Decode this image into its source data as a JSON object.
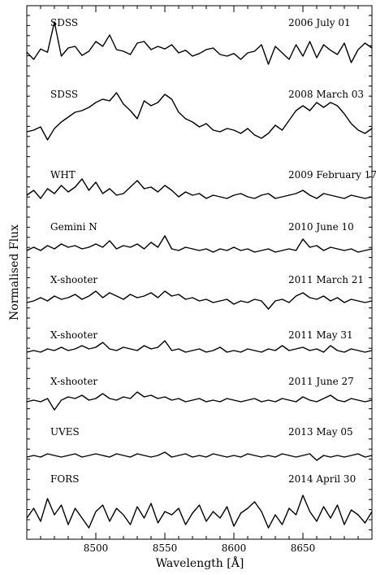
{
  "chart_data": {
    "type": "line",
    "xlabel": "Wavelength [Å]",
    "ylabel": "Normalised Flux",
    "xlim": [
      8450,
      8700
    ],
    "xticks": [
      8500,
      8550,
      8600,
      8650
    ],
    "xtick_labels": [
      "8500",
      "8550",
      "8600",
      "8650"
    ],
    "grid": false,
    "series": [
      {
        "name": "SDSS",
        "date": "2006  July 01",
        "x": [
          8450,
          8455,
          8460,
          8465,
          8470,
          8475,
          8480,
          8485,
          8490,
          8495,
          8500,
          8505,
          8510,
          8515,
          8520,
          8525,
          8530,
          8535,
          8540,
          8545,
          8550,
          8555,
          8560,
          8565,
          8570,
          8575,
          8580,
          8585,
          8590,
          8595,
          8600,
          8605,
          8610,
          8615,
          8620,
          8625,
          8630,
          8635,
          8640,
          8645,
          8650,
          8655,
          8660,
          8665,
          8670,
          8675,
          8680,
          8685,
          8690,
          8695,
          8700
        ],
        "y": [
          0.02,
          -0.2,
          0.12,
          0.02,
          0.95,
          -0.1,
          0.15,
          0.2,
          -0.08,
          0.05,
          0.35,
          0.2,
          0.55,
          0.1,
          0.05,
          -0.05,
          0.3,
          0.35,
          0.1,
          0.2,
          0.12,
          0.25,
          0.0,
          0.08,
          -0.1,
          -0.02,
          0.1,
          0.15,
          -0.05,
          -0.1,
          -0.02,
          -0.2,
          0.0,
          0.05,
          0.25,
          -0.35,
          0.2,
          0.0,
          -0.2,
          0.25,
          -0.1,
          0.35,
          -0.15,
          0.25,
          0.08,
          -0.05,
          0.3,
          -0.3,
          0.1,
          0.3,
          0.15
        ]
      },
      {
        "name": "SDSS",
        "date": "2008  March 03",
        "x": [
          8450,
          8455,
          8460,
          8465,
          8470,
          8475,
          8480,
          8485,
          8490,
          8495,
          8500,
          8505,
          8510,
          8515,
          8520,
          8525,
          8530,
          8535,
          8540,
          8545,
          8550,
          8555,
          8560,
          8565,
          8570,
          8575,
          8580,
          8585,
          8590,
          8595,
          8600,
          8605,
          8610,
          8615,
          8620,
          8625,
          8630,
          8635,
          8640,
          8645,
          8650,
          8655,
          8660,
          8665,
          8670,
          8675,
          8680,
          8685,
          8690,
          8695,
          8700
        ],
        "y": [
          -0.05,
          0.0,
          0.1,
          -0.3,
          0.05,
          0.25,
          0.4,
          0.55,
          0.6,
          0.7,
          0.85,
          0.95,
          0.9,
          1.15,
          0.8,
          0.6,
          0.35,
          0.9,
          0.75,
          0.85,
          1.1,
          0.95,
          0.55,
          0.35,
          0.25,
          0.1,
          0.2,
          0.0,
          -0.05,
          0.05,
          0.0,
          -0.1,
          0.05,
          -0.15,
          -0.25,
          -0.1,
          0.15,
          0.0,
          0.3,
          0.6,
          0.75,
          0.6,
          0.85,
          0.7,
          0.85,
          0.75,
          0.5,
          0.2,
          0.0,
          -0.1,
          0.05
        ]
      },
      {
        "name": "WHT",
        "date": "2009  February 17",
        "x": [
          8450,
          8455,
          8460,
          8465,
          8470,
          8475,
          8480,
          8485,
          8490,
          8495,
          8500,
          8505,
          8510,
          8515,
          8520,
          8525,
          8530,
          8535,
          8540,
          8545,
          8550,
          8555,
          8560,
          8565,
          8570,
          8575,
          8580,
          8585,
          8590,
          8595,
          8600,
          8605,
          8610,
          8615,
          8620,
          8625,
          8630,
          8635,
          8640,
          8645,
          8650,
          8655,
          8660,
          8665,
          8670,
          8675,
          8680,
          8685,
          8690,
          8695,
          8700
        ],
        "y": [
          0.05,
          0.2,
          -0.05,
          0.25,
          0.1,
          0.35,
          0.15,
          0.3,
          0.55,
          0.2,
          0.45,
          0.1,
          0.25,
          0.05,
          0.1,
          0.3,
          0.5,
          0.25,
          0.3,
          0.15,
          0.35,
          0.2,
          0.0,
          0.15,
          0.05,
          0.1,
          -0.05,
          0.05,
          0.0,
          -0.05,
          0.05,
          0.1,
          0.0,
          -0.05,
          0.05,
          0.1,
          -0.05,
          0.0,
          0.05,
          0.1,
          0.2,
          0.05,
          -0.05,
          0.1,
          0.05,
          0.0,
          -0.05,
          0.05,
          0.0,
          -0.05,
          0.0
        ]
      },
      {
        "name": "Gemini N",
        "date": "2010  June 10",
        "x": [
          8450,
          8455,
          8460,
          8465,
          8470,
          8475,
          8480,
          8485,
          8490,
          8495,
          8500,
          8505,
          8510,
          8515,
          8520,
          8525,
          8530,
          8535,
          8540,
          8545,
          8550,
          8555,
          8560,
          8565,
          8570,
          8575,
          8580,
          8585,
          8590,
          8595,
          8600,
          8605,
          8610,
          8615,
          8620,
          8625,
          8630,
          8635,
          8640,
          8645,
          8650,
          8655,
          8660,
          8665,
          8670,
          8675,
          8680,
          8685,
          8690,
          8695,
          8700
        ],
        "y": [
          0.0,
          0.1,
          0.0,
          0.15,
          0.05,
          0.2,
          0.1,
          0.15,
          0.05,
          0.1,
          0.2,
          0.1,
          0.3,
          0.05,
          0.15,
          0.1,
          0.2,
          0.05,
          0.25,
          0.1,
          0.45,
          0.05,
          0.0,
          0.1,
          0.05,
          0.0,
          0.05,
          -0.05,
          0.05,
          0.0,
          0.1,
          0.0,
          0.05,
          -0.05,
          0.0,
          0.05,
          -0.05,
          0.0,
          0.05,
          0.0,
          0.35,
          0.1,
          0.15,
          0.0,
          0.1,
          0.05,
          0.0,
          0.05,
          -0.05,
          0.0,
          0.05
        ]
      },
      {
        "name": "X-shooter",
        "date": "2011  March 21",
        "x": [
          8450,
          8455,
          8460,
          8465,
          8470,
          8475,
          8480,
          8485,
          8490,
          8495,
          8500,
          8505,
          8510,
          8515,
          8520,
          8525,
          8530,
          8535,
          8540,
          8545,
          8550,
          8555,
          8560,
          8565,
          8570,
          8575,
          8580,
          8585,
          8590,
          8595,
          8600,
          8605,
          8610,
          8615,
          8620,
          8625,
          8630,
          8635,
          8640,
          8645,
          8650,
          8655,
          8660,
          8665,
          8670,
          8675,
          8680,
          8685,
          8690,
          8695,
          8700
        ],
        "y": [
          0.0,
          0.05,
          0.15,
          0.05,
          0.2,
          0.1,
          0.15,
          0.25,
          0.1,
          0.2,
          0.35,
          0.15,
          0.3,
          0.2,
          0.1,
          0.25,
          0.15,
          0.2,
          0.3,
          0.15,
          0.35,
          0.2,
          0.25,
          0.1,
          0.15,
          0.05,
          0.1,
          0.0,
          0.05,
          0.1,
          -0.05,
          0.05,
          0.0,
          0.1,
          0.05,
          -0.2,
          0.05,
          0.1,
          0.0,
          0.2,
          0.3,
          0.15,
          0.1,
          0.2,
          0.05,
          0.15,
          0.0,
          0.1,
          0.05,
          0.0,
          0.05
        ]
      },
      {
        "name": "X-shooter",
        "date": "2011  May 31",
        "x": [
          8450,
          8455,
          8460,
          8465,
          8470,
          8475,
          8480,
          8485,
          8490,
          8495,
          8500,
          8505,
          8510,
          8515,
          8520,
          8525,
          8530,
          8535,
          8540,
          8545,
          8550,
          8555,
          8560,
          8565,
          8570,
          8575,
          8580,
          8585,
          8590,
          8595,
          8600,
          8605,
          8610,
          8615,
          8620,
          8625,
          8630,
          8635,
          8640,
          8645,
          8650,
          8655,
          8660,
          8665,
          8670,
          8675,
          8680,
          8685,
          8690,
          8695,
          8700
        ],
        "y": [
          0.0,
          0.05,
          0.0,
          0.1,
          0.05,
          0.15,
          0.05,
          0.1,
          0.2,
          0.1,
          0.15,
          0.3,
          0.1,
          0.05,
          0.15,
          0.1,
          0.05,
          0.2,
          0.1,
          0.15,
          0.35,
          0.05,
          0.1,
          0.0,
          0.05,
          0.1,
          0.0,
          0.05,
          0.15,
          0.0,
          0.05,
          0.0,
          0.1,
          0.05,
          0.0,
          0.1,
          0.05,
          0.2,
          0.05,
          0.1,
          0.15,
          0.05,
          0.1,
          0.0,
          0.2,
          0.05,
          0.0,
          0.1,
          0.05,
          0.0,
          0.05
        ]
      },
      {
        "name": "X-shooter",
        "date": "2011  June 27",
        "x": [
          8450,
          8455,
          8460,
          8465,
          8470,
          8475,
          8480,
          8485,
          8490,
          8495,
          8500,
          8505,
          8510,
          8515,
          8520,
          8525,
          8530,
          8535,
          8540,
          8545,
          8550,
          8555,
          8560,
          8565,
          8570,
          8575,
          8580,
          8585,
          8590,
          8595,
          8600,
          8605,
          8610,
          8615,
          8620,
          8625,
          8630,
          8635,
          8640,
          8645,
          8650,
          8655,
          8660,
          8665,
          8670,
          8675,
          8680,
          8685,
          8690,
          8695,
          8700
        ],
        "y": [
          0.0,
          0.05,
          0.0,
          0.1,
          -0.25,
          0.05,
          0.15,
          0.1,
          0.2,
          0.05,
          0.1,
          0.25,
          0.1,
          0.05,
          0.15,
          0.1,
          0.3,
          0.15,
          0.2,
          0.1,
          0.15,
          0.05,
          0.1,
          0.0,
          0.05,
          0.1,
          0.0,
          0.05,
          0.0,
          0.1,
          0.05,
          0.0,
          0.05,
          0.1,
          0.0,
          0.05,
          0.0,
          0.1,
          0.05,
          0.0,
          0.15,
          0.05,
          0.0,
          0.1,
          0.2,
          0.05,
          0.0,
          0.1,
          0.05,
          0.0,
          0.05
        ]
      },
      {
        "name": "UVES",
        "date": "2013  May 05",
        "x": [
          8450,
          8455,
          8460,
          8465,
          8470,
          8475,
          8480,
          8485,
          8490,
          8495,
          8500,
          8505,
          8510,
          8515,
          8520,
          8525,
          8530,
          8535,
          8540,
          8545,
          8550,
          8555,
          8560,
          8565,
          8570,
          8575,
          8580,
          8585,
          8590,
          8595,
          8600,
          8605,
          8610,
          8615,
          8620,
          8625,
          8630,
          8635,
          8640,
          8645,
          8650,
          8655,
          8660,
          8665,
          8670,
          8675,
          8680,
          8685,
          8690,
          8695,
          8700
        ],
        "y": [
          0.0,
          0.05,
          0.0,
          0.1,
          0.05,
          0.0,
          0.05,
          0.1,
          0.0,
          0.05,
          0.1,
          0.05,
          0.0,
          0.1,
          0.05,
          0.0,
          0.1,
          0.05,
          0.0,
          0.05,
          0.15,
          0.0,
          0.05,
          0.1,
          0.0,
          0.05,
          0.0,
          0.1,
          0.05,
          0.0,
          0.05,
          0.0,
          0.1,
          0.05,
          0.0,
          0.05,
          0.0,
          0.1,
          0.05,
          0.0,
          0.05,
          0.1,
          -0.1,
          0.05,
          0.0,
          0.05,
          0.0,
          0.05,
          0.1,
          0.0,
          0.05
        ]
      },
      {
        "name": "FORS",
        "date": "2014  April 30",
        "x": [
          8450,
          8455,
          8460,
          8465,
          8470,
          8475,
          8480,
          8485,
          8490,
          8495,
          8500,
          8505,
          8510,
          8515,
          8520,
          8525,
          8530,
          8535,
          8540,
          8545,
          8550,
          8555,
          8560,
          8565,
          8570,
          8575,
          8580,
          8585,
          8590,
          8595,
          8600,
          8605,
          8610,
          8615,
          8620,
          8625,
          8630,
          8635,
          8640,
          8645,
          8650,
          8655,
          8660,
          8665,
          8670,
          8675,
          8680,
          8685,
          8690,
          8695,
          8700
        ],
        "y": [
          0.0,
          0.3,
          -0.1,
          0.6,
          0.1,
          0.4,
          -0.2,
          0.3,
          0.0,
          -0.3,
          0.2,
          0.4,
          -0.1,
          0.3,
          0.1,
          -0.2,
          0.35,
          0.0,
          0.45,
          -0.15,
          0.2,
          0.1,
          0.3,
          -0.2,
          0.15,
          0.4,
          -0.1,
          0.2,
          0.0,
          0.35,
          -0.25,
          0.15,
          0.3,
          0.5,
          0.2,
          -0.3,
          0.1,
          -0.2,
          0.3,
          0.1,
          0.7,
          0.2,
          -0.1,
          0.35,
          0.0,
          0.4,
          -0.2,
          0.25,
          0.1,
          -0.15,
          0.2
        ]
      }
    ]
  }
}
